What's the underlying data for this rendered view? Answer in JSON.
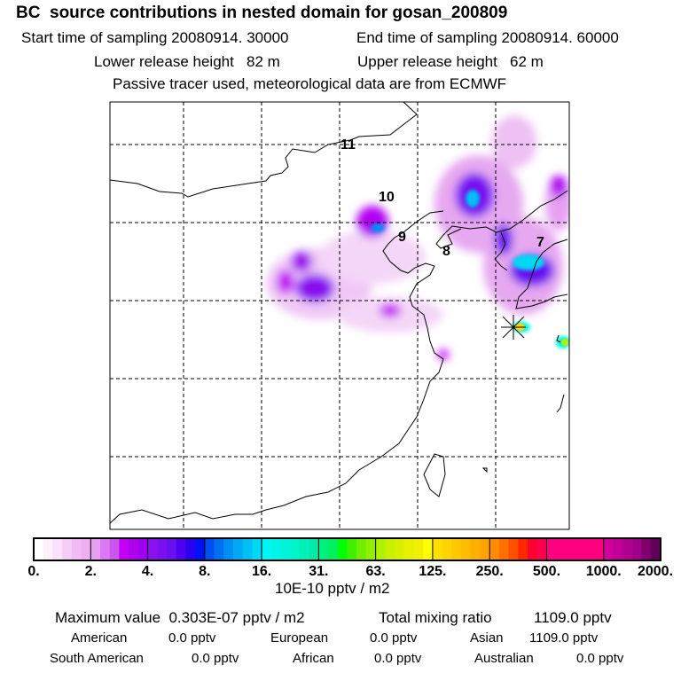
{
  "title": "BC  source contributions in nested domain for gosan_200809",
  "header": {
    "start": "Start time of sampling 20080914. 30000",
    "end": "End time of sampling 20080914. 60000",
    "lower": "Lower release height   82 m",
    "upper": "Upper release height   62 m",
    "note": "Passive tracer used, meteorological data are from ECMWF"
  },
  "map": {
    "labels": [
      "11",
      "10",
      "9",
      "8",
      "7"
    ]
  },
  "colorbar": {
    "ticks": [
      "0.",
      "2.",
      "4.",
      "8.",
      "16.",
      "31.",
      "63.",
      "125.",
      "250.",
      "500.",
      "1000.",
      "2000."
    ],
    "unit": "10E-10 pptv / m2",
    "colors": [
      [
        "#ffffff",
        "#fff0fc",
        "#fbe0fa",
        "#f6cdf7",
        "#f2bbf5",
        "#eeb0f3"
      ],
      [
        "#e6a0f3",
        "#dc78f3",
        "#cc55f0",
        "#c200f5",
        "#b000f0",
        "#a000f0"
      ],
      [
        "#8a10f0",
        "#7a10f0",
        "#6a10f0",
        "#5000f0",
        "#2a00f0",
        "#0010f5"
      ],
      [
        "#0050f0",
        "#0070f0",
        "#0090f5",
        "#00a8f5",
        "#00c0f5",
        "#00d8f5"
      ],
      [
        "#00f5f5",
        "#00f5e8",
        "#00f5d8",
        "#00f5c8",
        "#00f0b8",
        "#00eaa8"
      ],
      [
        "#00f080",
        "#00f060",
        "#00ff00",
        "#40f000",
        "#70f000",
        "#90f000"
      ],
      [
        "#b0f000",
        "#c8f000",
        "#d8f000",
        "#e6f000",
        "#f0f000",
        "#ffff00"
      ],
      [
        "#ffe000",
        "#ffd400",
        "#ffc800",
        "#ffbc00",
        "#ffb000",
        "#ffa400"
      ],
      [
        "#ff8c00",
        "#ff7000",
        "#ff5000",
        "#ff2800",
        "#ff0030",
        "#ff0050"
      ],
      [
        "#ff0080",
        "#ff0080",
        "#ff0080",
        "#ff0080",
        "#ff0080",
        "#ff0080"
      ],
      [
        "#d0009a",
        "#c00096",
        "#b00090",
        "#a00088",
        "#80006e",
        "#600058"
      ]
    ]
  },
  "footer": {
    "max_label": "Maximum value  0.303E-07 pptv / m2",
    "total_label": "Total mixing ratio",
    "total_value": "1109.0 pptv",
    "regions": [
      {
        "name": "American",
        "value": "0.0 pptv"
      },
      {
        "name": "European",
        "value": "0.0 pptv"
      },
      {
        "name": "Asian",
        "value": "1109.0 pptv"
      },
      {
        "name": "South American",
        "value": "0.0 pptv"
      },
      {
        "name": "African",
        "value": "0.0 pptv"
      },
      {
        "name": "Australian",
        "value": "0.0 pptv"
      }
    ]
  }
}
